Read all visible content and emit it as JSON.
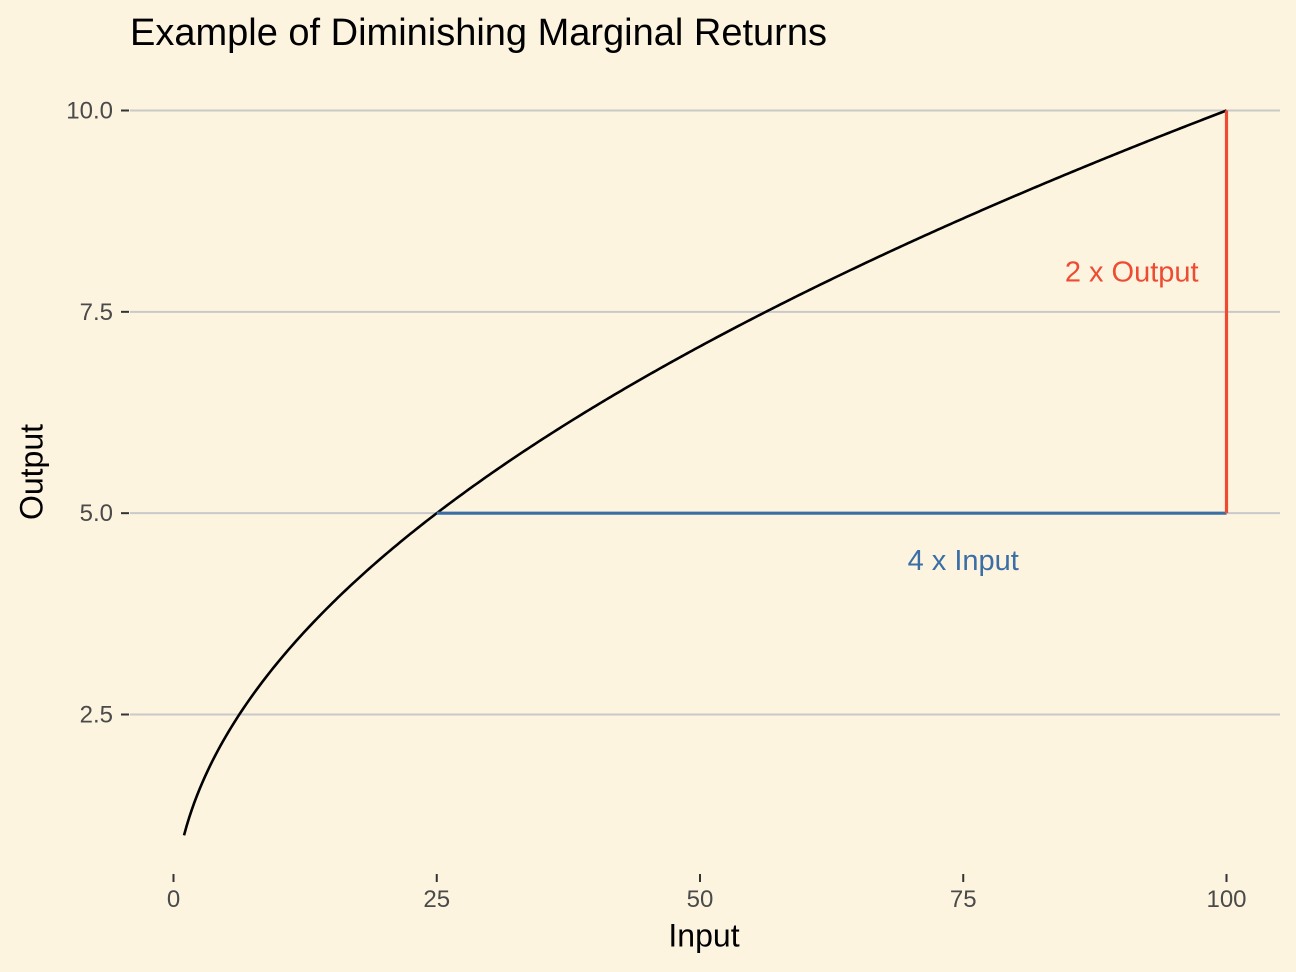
{
  "chart_data": {
    "type": "line",
    "title": "Example of Diminishing Marginal Returns",
    "xlabel": "Input",
    "ylabel": "Output",
    "xlim": [
      0,
      100
    ],
    "ylim": [
      1,
      10
    ],
    "x_ticks": [
      {
        "value": 0,
        "label": "0"
      },
      {
        "value": 25,
        "label": "25"
      },
      {
        "value": 50,
        "label": "50"
      },
      {
        "value": 75,
        "label": "75"
      },
      {
        "value": 100,
        "label": "100"
      }
    ],
    "y_ticks": [
      {
        "value": 2.5,
        "label": "2.5"
      },
      {
        "value": 5,
        "label": "5.0"
      },
      {
        "value": 7.5,
        "label": "7.5"
      },
      {
        "value": 10,
        "label": "10.0"
      }
    ],
    "grid": "horizontal",
    "series": [
      {
        "color": "#000000",
        "x": [
          1,
          2,
          3,
          4,
          5,
          6,
          8,
          10,
          12,
          15,
          20,
          25,
          30,
          35,
          40,
          45,
          50,
          55,
          60,
          65,
          70,
          75,
          80,
          85,
          90,
          95,
          100
        ],
        "y": [
          1,
          1.414,
          1.732,
          2,
          2.236,
          2.449,
          2.828,
          3.162,
          3.464,
          3.873,
          4.472,
          5,
          5.477,
          5.916,
          6.325,
          6.708,
          7.071,
          7.416,
          7.746,
          8.062,
          8.367,
          8.66,
          8.944,
          9.22,
          9.487,
          9.747,
          10
        ]
      }
    ],
    "segments": [
      {
        "name": "input-segment",
        "x": [
          25,
          100
        ],
        "y": [
          5,
          5
        ],
        "color": "#3a6ea5"
      },
      {
        "name": "output-segment",
        "x": [
          100,
          100
        ],
        "y": [
          5,
          10
        ],
        "color": "#ee4b33"
      }
    ],
    "annotations": [
      {
        "text": "2 x Output",
        "x": 91,
        "y": 8,
        "color": "#ee4b33"
      },
      {
        "text": "4 x Input",
        "x": 75,
        "y": 4.42,
        "color": "#3a6ea5"
      }
    ]
  }
}
